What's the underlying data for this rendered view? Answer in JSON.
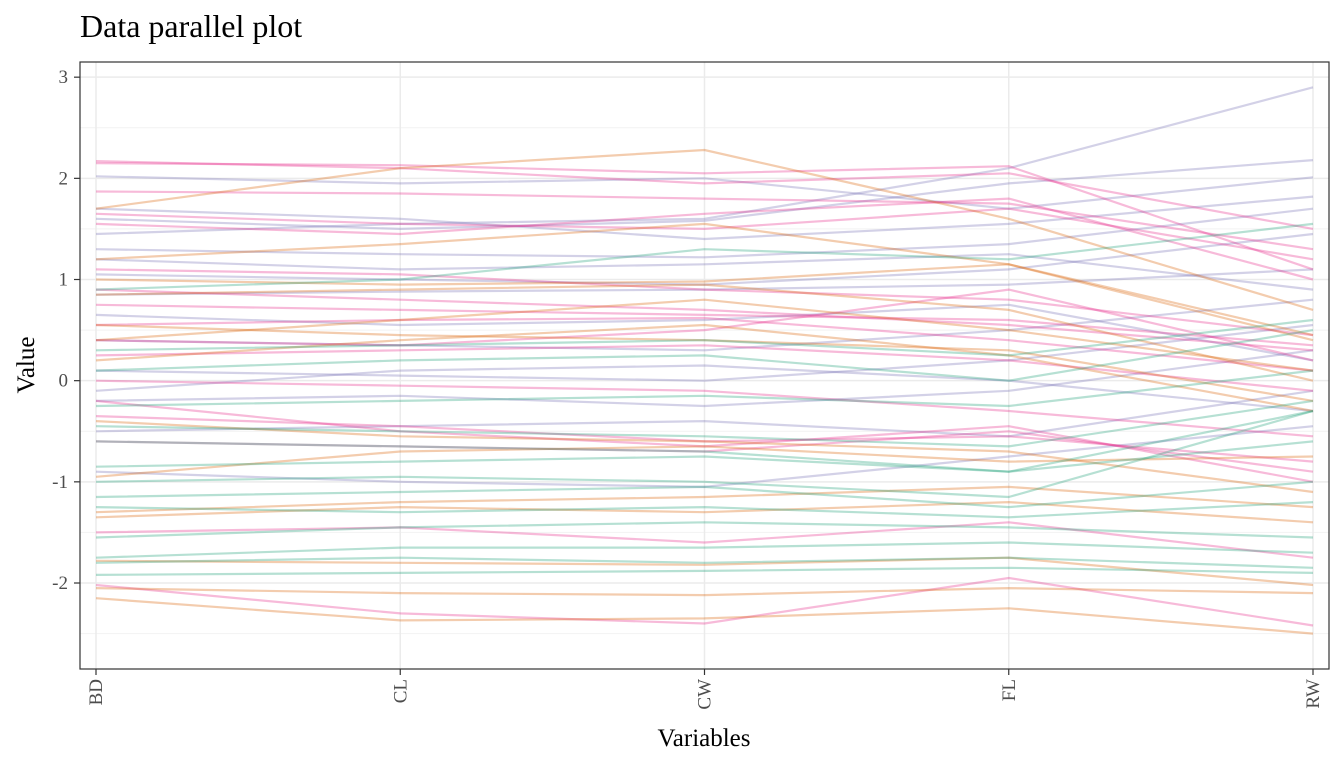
{
  "chart_data": {
    "type": "line",
    "title": "Data parallel plot",
    "xlabel": "Variables",
    "ylabel": "Value",
    "categories": [
      "BD",
      "CL",
      "CW",
      "FL",
      "RW"
    ],
    "y_ticks": [
      -2,
      -1,
      0,
      1,
      2,
      3
    ],
    "ylim": [
      -2.85,
      3.15
    ],
    "grid": true,
    "legend": "none",
    "colors": {
      "green": "#1b9e77",
      "orange": "#d95f02",
      "purple": "#7570b3",
      "pink": "#e7298a"
    },
    "series": [
      {
        "group": "purple",
        "values": [
          1.45,
          1.55,
          1.6,
          2.1,
          2.9
        ]
      },
      {
        "group": "purple",
        "values": [
          1.6,
          1.5,
          1.58,
          1.95,
          2.18
        ]
      },
      {
        "group": "purple",
        "values": [
          2.02,
          1.95,
          2.0,
          1.7,
          2.01
        ]
      },
      {
        "group": "purple",
        "values": [
          1.7,
          1.6,
          1.4,
          1.55,
          1.82
        ]
      },
      {
        "group": "purple",
        "values": [
          1.3,
          1.25,
          1.22,
          1.35,
          1.7
        ]
      },
      {
        "group": "purple",
        "values": [
          1.05,
          1.0,
          0.95,
          1.1,
          1.45
        ]
      },
      {
        "group": "purple",
        "values": [
          0.85,
          0.88,
          0.9,
          0.95,
          1.1
        ]
      },
      {
        "group": "purple",
        "values": [
          0.4,
          0.35,
          0.3,
          0.5,
          0.8
        ]
      },
      {
        "group": "purple",
        "values": [
          0.1,
          0.05,
          0.0,
          0.2,
          0.55
        ]
      },
      {
        "group": "purple",
        "values": [
          -0.2,
          -0.15,
          -0.25,
          -0.1,
          0.3
        ]
      },
      {
        "group": "purple",
        "values": [
          -0.5,
          -0.45,
          -0.4,
          -0.55,
          -0.1
        ]
      },
      {
        "group": "purple",
        "values": [
          -0.9,
          -1.0,
          -1.05,
          -0.75,
          -0.45
        ]
      },
      {
        "group": "purple",
        "values": [
          0.65,
          0.55,
          0.6,
          0.75,
          0.2
        ]
      },
      {
        "group": "purple",
        "values": [
          1.2,
          1.1,
          1.15,
          1.25,
          0.9
        ]
      },
      {
        "group": "purple",
        "values": [
          -0.1,
          0.1,
          0.15,
          0.0,
          -0.3
        ]
      },
      {
        "group": "pink",
        "values": [
          2.15,
          2.13,
          2.05,
          2.12,
          1.1
        ]
      },
      {
        "group": "pink",
        "values": [
          2.17,
          2.1,
          1.95,
          2.05,
          1.5
        ]
      },
      {
        "group": "pink",
        "values": [
          1.87,
          1.85,
          1.8,
          1.75,
          1.3
        ]
      },
      {
        "group": "pink",
        "values": [
          1.55,
          1.45,
          1.65,
          1.8,
          1.0
        ]
      },
      {
        "group": "pink",
        "values": [
          1.1,
          1.05,
          0.9,
          0.8,
          0.45
        ]
      },
      {
        "group": "pink",
        "values": [
          0.9,
          0.8,
          0.7,
          0.55,
          0.3
        ]
      },
      {
        "group": "pink",
        "values": [
          0.55,
          0.6,
          0.62,
          0.4,
          0.1
        ]
      },
      {
        "group": "pink",
        "values": [
          0.25,
          0.3,
          0.35,
          0.2,
          -0.1
        ]
      },
      {
        "group": "pink",
        "values": [
          0.0,
          -0.05,
          -0.1,
          -0.3,
          -0.55
        ]
      },
      {
        "group": "pink",
        "values": [
          -0.35,
          -0.45,
          -0.6,
          -0.55,
          -0.8
        ]
      },
      {
        "group": "pink",
        "values": [
          -0.6,
          -0.65,
          -0.7,
          -0.5,
          -0.9
        ]
      },
      {
        "group": "pink",
        "values": [
          -0.2,
          -0.5,
          -0.65,
          -0.45,
          -1.0
        ]
      },
      {
        "group": "pink",
        "values": [
          -1.5,
          -1.45,
          -1.6,
          -1.4,
          -1.75
        ]
      },
      {
        "group": "pink",
        "values": [
          -2.02,
          -2.3,
          -2.4,
          -1.95,
          -2.42
        ]
      },
      {
        "group": "pink",
        "values": [
          0.75,
          0.7,
          0.65,
          0.6,
          0.35
        ]
      },
      {
        "group": "pink",
        "values": [
          1.65,
          1.55,
          1.5,
          1.7,
          1.2
        ]
      },
      {
        "group": "pink",
        "values": [
          0.4,
          0.35,
          0.5,
          0.9,
          0.2
        ]
      },
      {
        "group": "orange",
        "values": [
          1.7,
          2.1,
          2.28,
          1.6,
          0.7
        ]
      },
      {
        "group": "orange",
        "values": [
          1.2,
          1.35,
          1.55,
          1.15,
          0.4
        ]
      },
      {
        "group": "orange",
        "values": [
          0.85,
          0.9,
          0.95,
          0.7,
          0.0
        ]
      },
      {
        "group": "orange",
        "values": [
          0.55,
          0.45,
          0.4,
          0.3,
          -0.2
        ]
      },
      {
        "group": "orange",
        "values": [
          0.2,
          0.4,
          0.55,
          0.25,
          -0.3
        ]
      },
      {
        "group": "orange",
        "values": [
          -0.95,
          -0.7,
          -0.65,
          -0.8,
          -0.75
        ]
      },
      {
        "group": "orange",
        "values": [
          -1.3,
          -1.2,
          -1.15,
          -1.05,
          -1.25
        ]
      },
      {
        "group": "orange",
        "values": [
          -1.35,
          -1.25,
          -1.3,
          -1.2,
          -1.4
        ]
      },
      {
        "group": "orange",
        "values": [
          -1.78,
          -1.8,
          -1.82,
          -1.75,
          -2.02
        ]
      },
      {
        "group": "orange",
        "values": [
          -2.15,
          -2.37,
          -2.35,
          -2.25,
          -2.5
        ]
      },
      {
        "group": "orange",
        "values": [
          -2.05,
          -2.1,
          -2.12,
          -2.05,
          -2.1
        ]
      },
      {
        "group": "orange",
        "values": [
          0.4,
          0.6,
          0.8,
          0.5,
          0.1
        ]
      },
      {
        "group": "orange",
        "values": [
          -0.4,
          -0.55,
          -0.6,
          -0.7,
          -1.1
        ]
      },
      {
        "group": "orange",
        "values": [
          1.0,
          0.95,
          0.98,
          1.15,
          0.45
        ]
      },
      {
        "group": "green",
        "values": [
          0.1,
          0.2,
          0.25,
          0.0,
          0.5
        ]
      },
      {
        "group": "green",
        "values": [
          -0.25,
          -0.2,
          -0.15,
          -0.25,
          0.1
        ]
      },
      {
        "group": "green",
        "values": [
          -0.6,
          -0.65,
          -0.7,
          -0.9,
          -0.3
        ]
      },
      {
        "group": "green",
        "values": [
          -0.85,
          -0.8,
          -0.75,
          -0.9,
          -0.6
        ]
      },
      {
        "group": "green",
        "values": [
          -1.15,
          -1.1,
          -1.05,
          -1.25,
          -1.0
        ]
      },
      {
        "group": "green",
        "values": [
          -1.25,
          -1.3,
          -1.25,
          -1.35,
          -1.2
        ]
      },
      {
        "group": "green",
        "values": [
          -1.55,
          -1.45,
          -1.4,
          -1.45,
          -1.55
        ]
      },
      {
        "group": "green",
        "values": [
          -1.75,
          -1.65,
          -1.65,
          -1.6,
          -1.7
        ]
      },
      {
        "group": "green",
        "values": [
          -1.92,
          -1.9,
          -1.88,
          -1.85,
          -1.9
        ]
      },
      {
        "group": "green",
        "values": [
          0.3,
          0.35,
          0.4,
          0.25,
          0.6
        ]
      },
      {
        "group": "green",
        "values": [
          0.9,
          1.0,
          1.3,
          1.2,
          1.55
        ]
      },
      {
        "group": "green",
        "values": [
          -0.45,
          -0.5,
          -0.55,
          -0.65,
          -0.2
        ]
      },
      {
        "group": "green",
        "values": [
          -1.0,
          -0.95,
          -1.0,
          -1.15,
          -0.3
        ]
      },
      {
        "group": "green",
        "values": [
          -1.8,
          -1.75,
          -1.8,
          -1.75,
          -1.85
        ]
      }
    ]
  }
}
